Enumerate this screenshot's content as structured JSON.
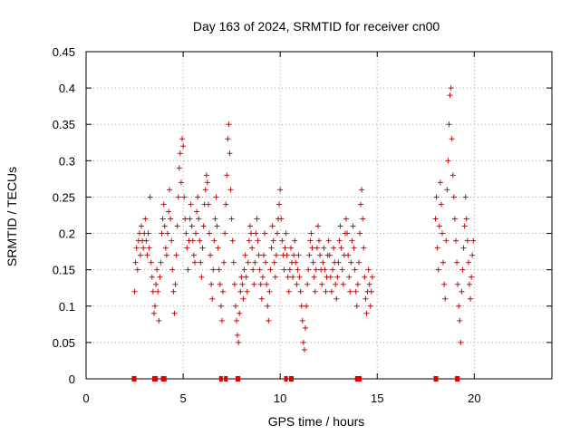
{
  "chart_data": {
    "type": "scatter",
    "title": "Day 163 of 2024, SRMTID for receiver cn00",
    "xlabel": "GPS time / hours",
    "ylabel": "SRMTID / TECUs",
    "xlim": [
      0,
      24
    ],
    "ylim": [
      0,
      0.45
    ],
    "x_ticks": [
      0,
      5,
      10,
      15,
      20
    ],
    "y_ticks": [
      0,
      0.05,
      0.1,
      0.15,
      0.2,
      0.25,
      0.3,
      0.35,
      0.4,
      0.45
    ],
    "x_tick_labels": [
      "0",
      "5",
      "10",
      "15",
      "20"
    ],
    "y_tick_labels": [
      "0",
      "0.05",
      "0.1",
      "0.15",
      "0.2",
      "0.25",
      "0.3",
      "0.35",
      "0.4",
      "0.45"
    ],
    "grid": true,
    "marker": "+",
    "color": "#e00000",
    "series": [
      {
        "name": "SRMTID",
        "points": [
          [
            2.5,
            0.12
          ],
          [
            2.55,
            0.16
          ],
          [
            2.6,
            0.18
          ],
          [
            2.65,
            0.15
          ],
          [
            2.7,
            0.19
          ],
          [
            2.75,
            0.2
          ],
          [
            2.8,
            0.17
          ],
          [
            2.85,
            0.21
          ],
          [
            2.9,
            0.19
          ],
          [
            2.95,
            0.18
          ],
          [
            3.0,
            0.2
          ],
          [
            3.05,
            0.22
          ],
          [
            3.1,
            0.19
          ],
          [
            3.15,
            0.17
          ],
          [
            3.2,
            0.2
          ],
          [
            3.25,
            0.18
          ],
          [
            3.3,
            0.25
          ],
          [
            3.35,
            0.16
          ],
          [
            3.4,
            0.14
          ],
          [
            3.45,
            0.12
          ],
          [
            3.5,
            0.09
          ],
          [
            3.55,
            0.1
          ],
          [
            3.6,
            0.13
          ],
          [
            3.65,
            0.15
          ],
          [
            3.7,
            0.12
          ],
          [
            3.75,
            0.08
          ],
          [
            3.8,
            0.14
          ],
          [
            3.85,
            0.16
          ],
          [
            3.9,
            0.2
          ],
          [
            3.95,
            0.22
          ],
          [
            4.0,
            0.24
          ],
          [
            4.05,
            0.21
          ],
          [
            4.1,
            0.18
          ],
          [
            4.15,
            0.17
          ],
          [
            4.2,
            0.2
          ],
          [
            4.25,
            0.23
          ],
          [
            4.3,
            0.26
          ],
          [
            4.35,
            0.22
          ],
          [
            4.4,
            0.19
          ],
          [
            4.45,
            0.15
          ],
          [
            4.5,
            0.12
          ],
          [
            4.55,
            0.09
          ],
          [
            4.6,
            0.13
          ],
          [
            4.65,
            0.17
          ],
          [
            4.7,
            0.21
          ],
          [
            4.75,
            0.25
          ],
          [
            4.8,
            0.29
          ],
          [
            4.85,
            0.31
          ],
          [
            4.9,
            0.27
          ],
          [
            4.95,
            0.33
          ],
          [
            5.0,
            0.32
          ],
          [
            5.05,
            0.25
          ],
          [
            5.1,
            0.22
          ],
          [
            5.15,
            0.2
          ],
          [
            5.2,
            0.18
          ],
          [
            5.25,
            0.15
          ],
          [
            5.3,
            0.19
          ],
          [
            5.35,
            0.22
          ],
          [
            5.4,
            0.24
          ],
          [
            5.45,
            0.21
          ],
          [
            5.5,
            0.19
          ],
          [
            5.55,
            0.17
          ],
          [
            5.6,
            0.16
          ],
          [
            5.65,
            0.2
          ],
          [
            5.7,
            0.23
          ],
          [
            5.75,
            0.25
          ],
          [
            5.8,
            0.22
          ],
          [
            5.85,
            0.19
          ],
          [
            5.9,
            0.16
          ],
          [
            5.95,
            0.14
          ],
          [
            6.0,
            0.18
          ],
          [
            6.05,
            0.21
          ],
          [
            6.1,
            0.24
          ],
          [
            6.15,
            0.26
          ],
          [
            6.2,
            0.28
          ],
          [
            6.25,
            0.27
          ],
          [
            6.3,
            0.24
          ],
          [
            6.35,
            0.2
          ],
          [
            6.4,
            0.17
          ],
          [
            6.45,
            0.13
          ],
          [
            6.5,
            0.11
          ],
          [
            6.55,
            0.15
          ],
          [
            6.6,
            0.19
          ],
          [
            6.65,
            0.22
          ],
          [
            6.7,
            0.25
          ],
          [
            6.75,
            0.21
          ],
          [
            6.8,
            0.18
          ],
          [
            6.85,
            0.15
          ],
          [
            6.9,
            0.13
          ],
          [
            6.95,
            0.1
          ],
          [
            7.0,
            0.08
          ],
          [
            7.05,
            0.12
          ],
          [
            7.1,
            0.16
          ],
          [
            7.15,
            0.2
          ],
          [
            7.2,
            0.24
          ],
          [
            7.25,
            0.28
          ],
          [
            7.3,
            0.33
          ],
          [
            7.35,
            0.35
          ],
          [
            7.4,
            0.31
          ],
          [
            7.45,
            0.26
          ],
          [
            7.5,
            0.22
          ],
          [
            7.55,
            0.19
          ],
          [
            7.6,
            0.16
          ],
          [
            7.65,
            0.13
          ],
          [
            7.7,
            0.1
          ],
          [
            7.75,
            0.08
          ],
          [
            7.8,
            0.06
          ],
          [
            7.85,
            0.05
          ],
          [
            7.9,
            0.09
          ],
          [
            7.95,
            0.12
          ],
          [
            8.0,
            0.14
          ],
          [
            8.05,
            0.13
          ],
          [
            8.1,
            0.11
          ],
          [
            8.15,
            0.15
          ],
          [
            8.2,
            0.17
          ],
          [
            8.25,
            0.14
          ],
          [
            8.3,
            0.12
          ],
          [
            8.35,
            0.16
          ],
          [
            8.4,
            0.19
          ],
          [
            8.45,
            0.21
          ],
          [
            8.5,
            0.2
          ],
          [
            8.55,
            0.18
          ],
          [
            8.6,
            0.15
          ],
          [
            8.65,
            0.13
          ],
          [
            8.7,
            0.16
          ],
          [
            8.75,
            0.2
          ],
          [
            8.8,
            0.22
          ],
          [
            8.85,
            0.19
          ],
          [
            8.9,
            0.17
          ],
          [
            8.95,
            0.15
          ],
          [
            9.0,
            0.13
          ],
          [
            9.05,
            0.11
          ],
          [
            9.1,
            0.14
          ],
          [
            9.15,
            0.17
          ],
          [
            9.2,
            0.2
          ],
          [
            9.25,
            0.16
          ],
          [
            9.3,
            0.13
          ],
          [
            9.35,
            0.1
          ],
          [
            9.4,
            0.08
          ],
          [
            9.45,
            0.12
          ],
          [
            9.5,
            0.15
          ],
          [
            9.55,
            0.18
          ],
          [
            9.6,
            0.21
          ],
          [
            9.65,
            0.19
          ],
          [
            9.7,
            0.16
          ],
          [
            9.75,
            0.14
          ],
          [
            9.8,
            0.17
          ],
          [
            9.85,
            0.2
          ],
          [
            9.9,
            0.22
          ],
          [
            9.95,
            0.24
          ],
          [
            10.0,
            0.26
          ],
          [
            10.05,
            0.22
          ],
          [
            10.1,
            0.19
          ],
          [
            10.15,
            0.17
          ],
          [
            10.2,
            0.15
          ],
          [
            10.25,
            0.18
          ],
          [
            10.3,
            0.2
          ],
          [
            10.35,
            0.17
          ],
          [
            10.4,
            0.14
          ],
          [
            10.45,
            0.12
          ],
          [
            10.5,
            0.15
          ],
          [
            10.55,
            0.18
          ],
          [
            10.6,
            0.16
          ],
          [
            10.65,
            0.14
          ],
          [
            10.7,
            0.17
          ],
          [
            10.75,
            0.19
          ],
          [
            10.8,
            0.16
          ],
          [
            10.85,
            0.13
          ],
          [
            10.9,
            0.15
          ],
          [
            10.95,
            0.17
          ],
          [
            11.0,
            0.14
          ],
          [
            11.05,
            0.12
          ],
          [
            11.1,
            0.1
          ],
          [
            11.15,
            0.08
          ],
          [
            11.2,
            0.05
          ],
          [
            11.25,
            0.04
          ],
          [
            11.3,
            0.07
          ],
          [
            11.35,
            0.1
          ],
          [
            11.4,
            0.13
          ],
          [
            11.45,
            0.15
          ],
          [
            11.5,
            0.17
          ],
          [
            11.55,
            0.19
          ],
          [
            11.6,
            0.2
          ],
          [
            11.65,
            0.18
          ],
          [
            11.7,
            0.16
          ],
          [
            11.75,
            0.14
          ],
          [
            11.8,
            0.12
          ],
          [
            11.85,
            0.15
          ],
          [
            11.9,
            0.18
          ],
          [
            11.95,
            0.21
          ],
          [
            12.0,
            0.19
          ],
          [
            12.05,
            0.17
          ],
          [
            12.1,
            0.15
          ],
          [
            12.15,
            0.13
          ],
          [
            12.2,
            0.16
          ],
          [
            12.25,
            0.18
          ],
          [
            12.3,
            0.15
          ],
          [
            12.35,
            0.12
          ],
          [
            12.4,
            0.14
          ],
          [
            12.45,
            0.17
          ],
          [
            12.5,
            0.19
          ],
          [
            12.55,
            0.17
          ],
          [
            12.6,
            0.14
          ],
          [
            12.65,
            0.12
          ],
          [
            12.7,
            0.15
          ],
          [
            12.75,
            0.18
          ],
          [
            12.8,
            0.16
          ],
          [
            12.85,
            0.13
          ],
          [
            12.9,
            0.11
          ],
          [
            12.95,
            0.14
          ],
          [
            13.0,
            0.16
          ],
          [
            13.05,
            0.19
          ],
          [
            13.1,
            0.21
          ],
          [
            13.15,
            0.18
          ],
          [
            13.2,
            0.15
          ],
          [
            13.25,
            0.13
          ],
          [
            13.3,
            0.17
          ],
          [
            13.35,
            0.2
          ],
          [
            13.4,
            0.22
          ],
          [
            13.45,
            0.2
          ],
          [
            13.5,
            0.17
          ],
          [
            13.55,
            0.14
          ],
          [
            13.6,
            0.12
          ],
          [
            13.65,
            0.16
          ],
          [
            13.7,
            0.19
          ],
          [
            13.75,
            0.21
          ],
          [
            13.8,
            0.18
          ],
          [
            13.85,
            0.15
          ],
          [
            13.9,
            0.12
          ],
          [
            13.95,
            0.1
          ],
          [
            14.0,
            0.13
          ],
          [
            14.05,
            0.16
          ],
          [
            14.1,
            0.2
          ],
          [
            14.15,
            0.24
          ],
          [
            14.2,
            0.26
          ],
          [
            14.25,
            0.22
          ],
          [
            14.3,
            0.18
          ],
          [
            14.35,
            0.14
          ],
          [
            14.4,
            0.11
          ],
          [
            14.45,
            0.09
          ],
          [
            14.5,
            0.12
          ],
          [
            14.55,
            0.15
          ],
          [
            14.6,
            0.13
          ],
          [
            14.65,
            0.1
          ],
          [
            14.7,
            0.12
          ],
          [
            14.75,
            0.14
          ],
          [
            18.0,
            0.22
          ],
          [
            18.05,
            0.25
          ],
          [
            18.1,
            0.18
          ],
          [
            18.15,
            0.15
          ],
          [
            18.2,
            0.21
          ],
          [
            18.25,
            0.27
          ],
          [
            18.3,
            0.24
          ],
          [
            18.35,
            0.2
          ],
          [
            18.4,
            0.16
          ],
          [
            18.45,
            0.13
          ],
          [
            18.5,
            0.11
          ],
          [
            18.55,
            0.19
          ],
          [
            18.6,
            0.26
          ],
          [
            18.65,
            0.3
          ],
          [
            18.7,
            0.35
          ],
          [
            18.75,
            0.39
          ],
          [
            18.8,
            0.4
          ],
          [
            18.85,
            0.33
          ],
          [
            18.9,
            0.28
          ],
          [
            18.95,
            0.25
          ],
          [
            19.0,
            0.22
          ],
          [
            19.05,
            0.19
          ],
          [
            19.1,
            0.16
          ],
          [
            19.15,
            0.13
          ],
          [
            19.2,
            0.1
          ],
          [
            19.25,
            0.08
          ],
          [
            19.3,
            0.05
          ],
          [
            19.35,
            0.12
          ],
          [
            19.4,
            0.15
          ],
          [
            19.45,
            0.18
          ],
          [
            19.5,
            0.21
          ],
          [
            19.55,
            0.25
          ],
          [
            19.6,
            0.22
          ],
          [
            19.65,
            0.19
          ],
          [
            19.7,
            0.16
          ],
          [
            19.75,
            0.13
          ],
          [
            19.8,
            0.11
          ],
          [
            19.85,
            0.14
          ],
          [
            19.9,
            0.17
          ],
          [
            19.95,
            0.19
          ]
        ],
        "zero_points_x": [
          2.45,
          2.5,
          3.5,
          3.55,
          3.6,
          3.95,
          4.0,
          4.05,
          6.95,
          7.2,
          7.8,
          7.85,
          10.3,
          10.55,
          10.6,
          13.95,
          14.0,
          14.05,
          14.1,
          18.0,
          18.05,
          19.1,
          19.15
        ]
      }
    ]
  }
}
